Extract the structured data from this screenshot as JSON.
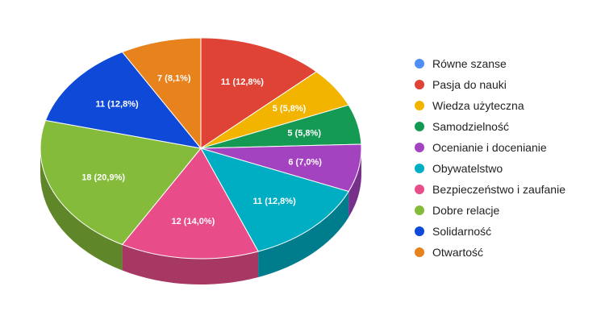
{
  "chart_data": {
    "type": "pie",
    "title": "",
    "slices": [
      {
        "label": "Równe szanse",
        "value": 0,
        "data_label": "",
        "color": "#4f8ff5"
      },
      {
        "label": "Pasja do nauki",
        "value": 11,
        "data_label": "11 (12,8%)",
        "color": "#df4336"
      },
      {
        "label": "Wiedza użyteczna",
        "value": 5,
        "data_label": "5 (5,8%)",
        "color": "#f3b400"
      },
      {
        "label": "Samodzielność",
        "value": 5,
        "data_label": "5 (5,8%)",
        "color": "#149a52"
      },
      {
        "label": "Ocenianie i docenianie",
        "value": 6,
        "data_label": "6 (7,0%)",
        "color": "#a443c0"
      },
      {
        "label": "Obywatelstwo",
        "value": 11,
        "data_label": "11 (12,8%)",
        "color": "#00aec4"
      },
      {
        "label": "Bezpieczeństwo i zaufanie",
        "value": 12,
        "data_label": "12 (14,0%)",
        "color": "#e84d8a"
      },
      {
        "label": "Dobre relacje",
        "value": 18,
        "data_label": "18 (20,9%)",
        "color": "#84bb3a"
      },
      {
        "label": "Solidarność",
        "value": 11,
        "data_label": "11 (12,8%)",
        "color": "#0e49d7"
      },
      {
        "label": "Otwartość",
        "value": 7,
        "data_label": "7 (8,1%)",
        "color": "#e8821c"
      }
    ],
    "legend_position": "right",
    "style": "3d"
  }
}
